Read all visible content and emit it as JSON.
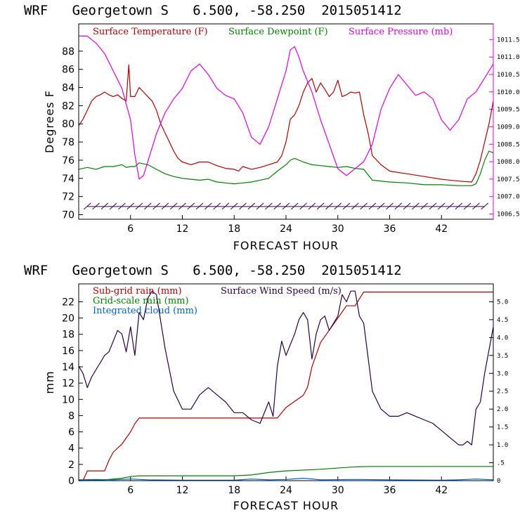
{
  "chart_data": [
    {
      "type": "line",
      "title": "WRF   Georgetown S   6.500, -58.250  2015051412",
      "xlabel": "FORECAST HOUR",
      "ylabel": "Degrees F",
      "xlim": [
        0,
        48
      ],
      "ylim": [
        69.5,
        91
      ],
      "y2lim": [
        1006.35,
        1011.95
      ],
      "x_ticks": [
        "6",
        "12",
        "18",
        "24",
        "30",
        "36",
        "42"
      ],
      "y_ticks": [
        "70",
        "72",
        "74",
        "76",
        "78",
        "80",
        "82",
        "84",
        "86",
        "88"
      ],
      "y2_ticks": [
        "1006.5",
        "1007.0",
        "1007.5",
        "1008.0",
        "1008.5",
        "1009.0",
        "1009.5",
        "1010.0",
        "1010.5",
        "1011.0",
        "1011.5"
      ],
      "colors": {
        "temperature": "#b00000",
        "dewpoint": "#008000",
        "pressure": "#e000e0",
        "wind_barbs": "#3a0050",
        "axis_right": "#e000e0"
      },
      "series": [
        {
          "name": "Surface Temperature (F)",
          "axis": "left",
          "x": [
            0,
            0.5,
            1,
            1.5,
            2,
            2.5,
            3,
            3.5,
            4,
            4.5,
            5,
            5.5,
            5.8,
            6,
            6.5,
            7,
            7.5,
            8,
            8.5,
            9,
            9.5,
            10,
            10.5,
            11,
            11.5,
            12,
            13,
            14,
            15,
            16,
            17,
            18,
            18.5,
            19,
            20,
            21,
            22,
            23,
            23.5,
            24,
            24.5,
            25,
            25.5,
            26,
            26.5,
            27,
            27.5,
            28,
            28.5,
            29,
            29.5,
            30,
            30.5,
            31,
            31.5,
            32,
            32.5,
            33,
            33.5,
            34,
            35,
            36,
            38,
            40,
            42,
            44,
            45.5,
            46,
            46.5,
            47,
            47.5,
            48
          ],
          "values": [
            79.8,
            80.5,
            81.5,
            82.5,
            83,
            83.2,
            83.5,
            83.2,
            83,
            83.2,
            82.8,
            82.5,
            86.5,
            83,
            83,
            84,
            83.5,
            83,
            82.5,
            81.5,
            80,
            79,
            78,
            77,
            76.2,
            75.8,
            75.5,
            75.8,
            75.8,
            75.4,
            75.1,
            75,
            74.8,
            75.3,
            75,
            75.2,
            75.5,
            75.8,
            76.5,
            78,
            80.5,
            81,
            82,
            83.5,
            84.5,
            85,
            83.5,
            84.5,
            83.8,
            83,
            83.5,
            84.8,
            83,
            83.2,
            83.5,
            83.4,
            83.5,
            81,
            79,
            76.5,
            75.5,
            74.8,
            74.5,
            74.2,
            73.9,
            73.7,
            73.6,
            74.5,
            76,
            78,
            80,
            82.5
          ]
        },
        {
          "name": "Surface Dewpoint (F)",
          "axis": "left",
          "x": [
            0,
            1,
            2,
            3,
            4,
            5,
            5.5,
            6,
            6.5,
            7,
            8,
            9,
            10,
            11,
            12,
            13,
            14,
            15,
            16,
            17,
            18,
            19,
            20,
            21,
            22,
            23,
            24,
            24.5,
            25,
            26,
            27,
            28,
            29,
            30,
            31,
            32,
            33,
            34,
            36,
            38,
            40,
            42,
            44,
            45.5,
            46,
            46.5,
            47,
            47.5,
            48
          ],
          "values": [
            75,
            75.2,
            75,
            75.3,
            75.3,
            75.5,
            75.2,
            75.3,
            75.3,
            75.7,
            75.5,
            75,
            74.5,
            74.2,
            74,
            73.9,
            73.8,
            73.9,
            73.6,
            73.5,
            73.4,
            73.5,
            73.6,
            73.8,
            74,
            74.8,
            75.5,
            76,
            76.2,
            75.8,
            75.5,
            75.4,
            75.3,
            75.2,
            75.3,
            75.1,
            75,
            73.8,
            73.6,
            73.5,
            73.3,
            73.3,
            73.2,
            73.2,
            73.4,
            74.5,
            76,
            77,
            76.8
          ]
        },
        {
          "name": "Surface Pressure (mb)",
          "axis": "right",
          "x": [
            0,
            1,
            1.5,
            2,
            3,
            4,
            5,
            6,
            6.5,
            7,
            7.5,
            8,
            9,
            10,
            11,
            12,
            13,
            14,
            15,
            16,
            17,
            18,
            19,
            20,
            21,
            22,
            23,
            24,
            24.5,
            25,
            25.5,
            26,
            27,
            28,
            29,
            30,
            31,
            32,
            33,
            34,
            35,
            36,
            37,
            38,
            39,
            40,
            41,
            42,
            43,
            44,
            45,
            46,
            47,
            48
          ],
          "values": [
            1011.6,
            1011.6,
            1011.5,
            1011.4,
            1011.1,
            1010.6,
            1010.1,
            1009.2,
            1008.2,
            1007.5,
            1007.6,
            1008,
            1008.8,
            1009.4,
            1009.8,
            1010.1,
            1010.6,
            1010.8,
            1010.5,
            1010.1,
            1009.9,
            1009.8,
            1009.4,
            1008.7,
            1008.5,
            1009,
            1009.8,
            1010.6,
            1011.2,
            1011.3,
            1011,
            1010.6,
            1010,
            1009.2,
            1008.5,
            1007.8,
            1007.6,
            1007.8,
            1008,
            1008.5,
            1009.5,
            1010.1,
            1010.5,
            1010.2,
            1009.9,
            1010,
            1009.8,
            1009.2,
            1008.9,
            1009.2,
            1009.8,
            1010,
            1010.4,
            1010.8
          ]
        }
      ],
      "wind_barbs_y": 70.9,
      "wind_barbs_x": [
        1,
        2,
        3,
        4,
        5,
        6,
        7,
        8,
        9,
        10,
        11,
        12,
        13,
        14,
        15,
        16,
        17,
        18,
        19,
        20,
        21,
        22,
        23,
        24,
        25,
        26,
        27,
        28,
        29,
        30,
        31,
        32,
        33,
        34,
        35,
        36,
        37,
        38,
        39,
        40,
        41,
        42,
        43,
        44,
        45,
        46,
        47
      ]
    },
    {
      "type": "line",
      "title": "WRF   Georgetown S   6.500, -58.250  2015051412",
      "xlabel": "FORECAST HOUR",
      "ylabel": "mm",
      "xlim": [
        0,
        48
      ],
      "ylim": [
        0,
        24.2
      ],
      "y2lim": [
        0,
        5.5
      ],
      "x_ticks": [
        "6",
        "12",
        "18",
        "24",
        "30",
        "36",
        "42"
      ],
      "y_ticks": [
        "0",
        "2",
        "4",
        "6",
        "8",
        "10",
        "12",
        "14",
        "16",
        "18",
        "20",
        "22"
      ],
      "y2_ticks": [
        "0",
        ".5",
        "1.0",
        "1.5",
        "2.0",
        "2.5",
        "3.0",
        "3.5",
        "4.0",
        "4.5",
        "5.0"
      ],
      "colors": {
        "subgrid": "#b00000",
        "gridscale": "#008000",
        "cloud": "#0060d0",
        "wind": "#2a0040"
      },
      "series": [
        {
          "name": "Sub-grid rain (mm)",
          "axis": "left",
          "x": [
            0,
            0.5,
            1,
            3,
            3.5,
            4,
            5,
            6,
            6.5,
            7,
            12,
            18,
            22.5,
            23,
            24,
            26,
            26.5,
            27,
            28,
            30,
            31,
            32,
            33,
            48
          ],
          "values": [
            0,
            0,
            1.2,
            1.2,
            2.5,
            3.5,
            4.5,
            6,
            7,
            7.7,
            7.7,
            7.7,
            7.7,
            7.7,
            9,
            10.5,
            11.5,
            14,
            17,
            20,
            21.5,
            21.5,
            23.2,
            23.2
          ]
        },
        {
          "name": "Grid-scale rain (mm)",
          "axis": "left",
          "x": [
            0,
            3,
            5,
            6,
            7,
            12,
            18,
            20,
            22,
            24,
            28,
            32,
            34,
            40,
            48
          ],
          "values": [
            0,
            0.1,
            0.3,
            0.5,
            0.6,
            0.6,
            0.6,
            0.7,
            1.0,
            1.2,
            1.4,
            1.7,
            1.75,
            1.75,
            1.75
          ]
        },
        {
          "name": "Integrated cloud (mm)",
          "axis": "left",
          "x": [
            0,
            2,
            4,
            6,
            8,
            12,
            18,
            20,
            22,
            24,
            26,
            28,
            32,
            36,
            42,
            44,
            46,
            48
          ],
          "values": [
            0.1,
            0.15,
            0.1,
            0.2,
            0.1,
            0.05,
            0.05,
            0.2,
            0.1,
            0.15,
            0.3,
            0.1,
            0.15,
            0.1,
            0.05,
            0.1,
            0.2,
            0.1
          ]
        },
        {
          "name": "Surface Wind Speed (m/s)",
          "axis": "right",
          "x": [
            0,
            0.5,
            1,
            1.5,
            2,
            2.5,
            3,
            3.5,
            4,
            4.5,
            5,
            5.5,
            6,
            6.5,
            7,
            7.5,
            8,
            8.5,
            9,
            10,
            11,
            12,
            13,
            14,
            15,
            16,
            17,
            18,
            19,
            20,
            21,
            22,
            22.5,
            23,
            23.5,
            24,
            24.5,
            25,
            25.5,
            26,
            26.5,
            27,
            27.5,
            28,
            28.5,
            29,
            29.5,
            30,
            30.5,
            31,
            31.5,
            32,
            32.5,
            33,
            34,
            35,
            36,
            37,
            38,
            39,
            40,
            41,
            42,
            43,
            44,
            44.5,
            45,
            45.5,
            46,
            46.5,
            47,
            48
          ],
          "values": [
            3.2,
            3,
            2.6,
            2.9,
            3.1,
            3.3,
            3.5,
            3.6,
            3.9,
            4.2,
            4.1,
            3.6,
            4.3,
            3.5,
            4.7,
            4.5,
            5.1,
            5.3,
            5.2,
            3.7,
            2.5,
            2,
            2,
            2.4,
            2.6,
            2.4,
            2.2,
            1.9,
            1.9,
            1.7,
            1.6,
            2.2,
            1.8,
            3.2,
            3.9,
            3.5,
            3.8,
            4.1,
            4.5,
            4.7,
            4.5,
            3.4,
            4.1,
            4.5,
            4.6,
            4.2,
            4.4,
            4.6,
            5.2,
            5,
            5.3,
            5.3,
            4.6,
            4.4,
            2.5,
            2,
            1.8,
            1.8,
            1.9,
            1.8,
            1.7,
            1.6,
            1.4,
            1.2,
            1,
            1,
            1.1,
            1,
            2,
            2.2,
            3,
            4.3
          ]
        }
      ]
    }
  ]
}
